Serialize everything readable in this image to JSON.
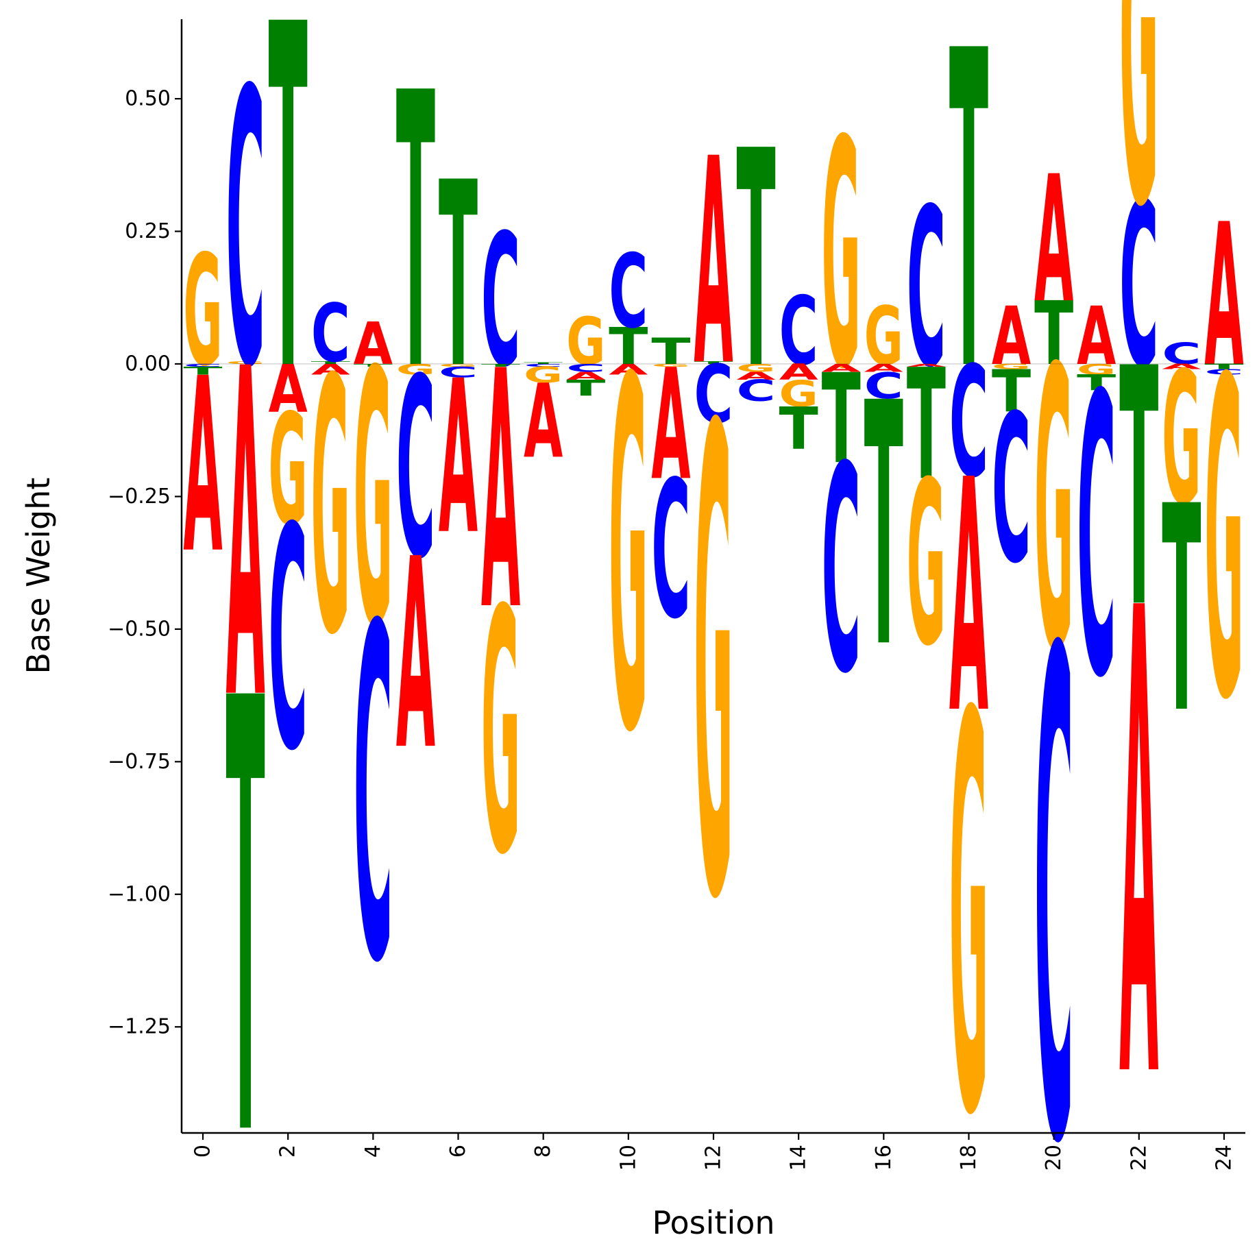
{
  "chart_data": {
    "type": "logo",
    "title": "",
    "xlabel": "Position",
    "ylabel": "Base Weight",
    "xlim": [
      -0.5,
      24.5
    ],
    "ylim": [
      -1.45,
      0.65
    ],
    "x_ticks": [
      0,
      2,
      4,
      6,
      8,
      10,
      12,
      14,
      16,
      18,
      20,
      22,
      24
    ],
    "y_ticks": [
      0.5,
      0.25,
      0.0,
      -0.25,
      -0.5,
      -0.75,
      -1.0,
      -1.25
    ],
    "y_tick_labels": [
      "0.50",
      "0.25",
      "0.00",
      "−0.25",
      "−0.50",
      "−0.75",
      "−1.00",
      "−1.25"
    ],
    "grid": false,
    "colors": {
      "A": "#ff0000",
      "C": "#0000ff",
      "G": "#ffa500",
      "T": "#008000"
    },
    "positions": [
      {
        "pos": 0,
        "A": -0.33,
        "C": -0.005,
        "G": 0.21,
        "T": -0.015
      },
      {
        "pos": 1,
        "A": -0.62,
        "C": 0.52,
        "G": 0.005,
        "T": -0.82
      },
      {
        "pos": 2,
        "A": -0.09,
        "C": -0.42,
        "G": -0.21,
        "T": 0.65
      },
      {
        "pos": 3,
        "A": -0.02,
        "C": 0.11,
        "G": -0.48,
        "T": 0.005
      },
      {
        "pos": 4,
        "A": 0.08,
        "C": -0.63,
        "G": -0.48,
        "T": -0.005
      },
      {
        "pos": 5,
        "A": -0.36,
        "C": -0.34,
        "G": -0.02,
        "T": 0.52
      },
      {
        "pos": 6,
        "A": -0.29,
        "C": -0.02,
        "G": -0.005,
        "T": 0.35
      },
      {
        "pos": 7,
        "A": -0.45,
        "C": 0.25,
        "G": -0.46,
        "T": -0.005
      },
      {
        "pos": 8,
        "A": -0.14,
        "C": -0.005,
        "G": -0.03,
        "T": 0.003
      },
      {
        "pos": 9,
        "A": -0.015,
        "C": -0.015,
        "G": 0.09,
        "T": -0.03
      },
      {
        "pos": 10,
        "A": -0.02,
        "C": 0.14,
        "G": -0.66,
        "T": 0.07
      },
      {
        "pos": 11,
        "A": -0.21,
        "C": -0.26,
        "G": -0.005,
        "T": 0.05
      },
      {
        "pos": 12,
        "A": 0.39,
        "C": -0.11,
        "G": -0.88,
        "T": 0.005
      },
      {
        "pos": 13,
        "A": -0.015,
        "C": -0.04,
        "G": -0.015,
        "T": 0.41
      },
      {
        "pos": 14,
        "A": -0.03,
        "C": 0.13,
        "G": -0.05,
        "T": -0.08
      },
      {
        "pos": 15,
        "A": -0.015,
        "C": -0.39,
        "G": 0.43,
        "T": -0.17
      },
      {
        "pos": 16,
        "A": -0.015,
        "C": -0.05,
        "G": 0.11,
        "T": -0.46
      },
      {
        "pos": 17,
        "A": -0.005,
        "C": 0.3,
        "G": -0.31,
        "T": -0.21
      },
      {
        "pos": 18,
        "A": -0.44,
        "C": -0.21,
        "G": -0.75,
        "T": 0.6
      },
      {
        "pos": 19,
        "A": 0.11,
        "C": -0.28,
        "G": -0.01,
        "T": -0.08
      },
      {
        "pos": 20,
        "A": 0.24,
        "C": -0.92,
        "G": -0.53,
        "T": 0.12
      },
      {
        "pos": 21,
        "A": 0.11,
        "C": -0.53,
        "G": -0.02,
        "T": -0.03
      },
      {
        "pos": 22,
        "A": -0.88,
        "C": 0.31,
        "G": 0.62,
        "T": -0.45
      },
      {
        "pos": 23,
        "A": -0.01,
        "C": 0.04,
        "G": -0.25,
        "T": -0.39
      },
      {
        "pos": 24,
        "A": 0.27,
        "C": -0.01,
        "G": -0.6,
        "T": -0.01
      }
    ]
  }
}
